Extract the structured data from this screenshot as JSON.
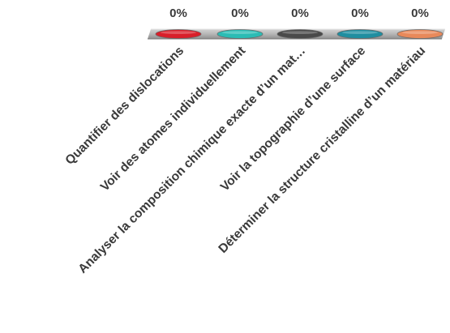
{
  "chart_data": {
    "type": "bar",
    "orientation": "horizontal-categories",
    "categories": [
      "Quantifier des dislocations",
      "Voir des atomes individuellement",
      "Analyser la composition chimique exacte d’un mat…",
      "Voir la topographie d’une surface",
      "Déterminer la structure cristalline d’un matériau"
    ],
    "values": [
      0,
      0,
      0,
      0,
      0
    ],
    "value_labels": [
      "0%",
      "0%",
      "0%",
      "0%",
      "0%"
    ],
    "unit": "%",
    "ylim": [
      0,
      100
    ],
    "colors": [
      "#d81f2a",
      "#2bbcb4",
      "#4a4a4a",
      "#1f8ea0",
      "#e8895a"
    ],
    "track_color": "#b4b4b4",
    "grid": false,
    "legend": "none"
  }
}
